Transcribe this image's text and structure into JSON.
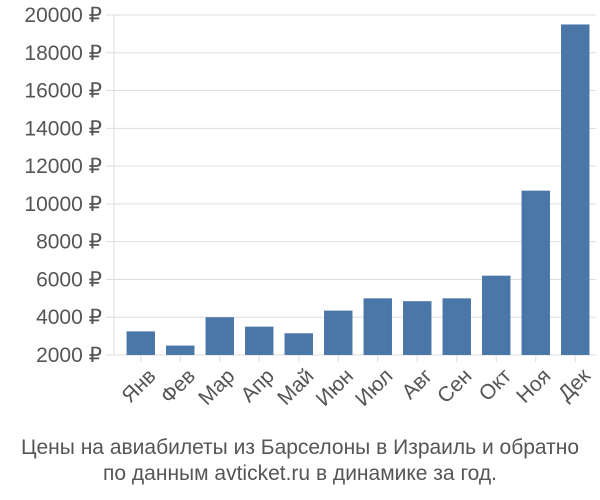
{
  "chart_data": {
    "type": "bar",
    "categories": [
      "Янв",
      "Фев",
      "Мар",
      "Апр",
      "Май",
      "Июн",
      "Июл",
      "Авг",
      "Сен",
      "Окт",
      "Ноя",
      "Дек"
    ],
    "values": [
      3250,
      2500,
      4000,
      3500,
      3150,
      4350,
      5000,
      4850,
      5000,
      6200,
      10700,
      19500
    ],
    "ylim": [
      2000,
      20000
    ],
    "yticks": [
      2000,
      4000,
      6000,
      8000,
      10000,
      12000,
      14000,
      16000,
      18000,
      20000
    ],
    "ytick_labels": [
      "2000 ₽",
      "4000 ₽",
      "6000 ₽",
      "8000 ₽",
      "10000 ₽",
      "12000 ₽",
      "14000 ₽",
      "16000 ₽",
      "18000 ₽",
      "20000 ₽"
    ],
    "bar_color": "#4a76a8",
    "grid_color": "#dddddd",
    "grid": true,
    "legend": "none"
  },
  "caption": {
    "line1": "Цены на авиабилеты из Барселоны в Израиль и обратно",
    "line2": "по данным avticket.ru в динамике за год."
  }
}
